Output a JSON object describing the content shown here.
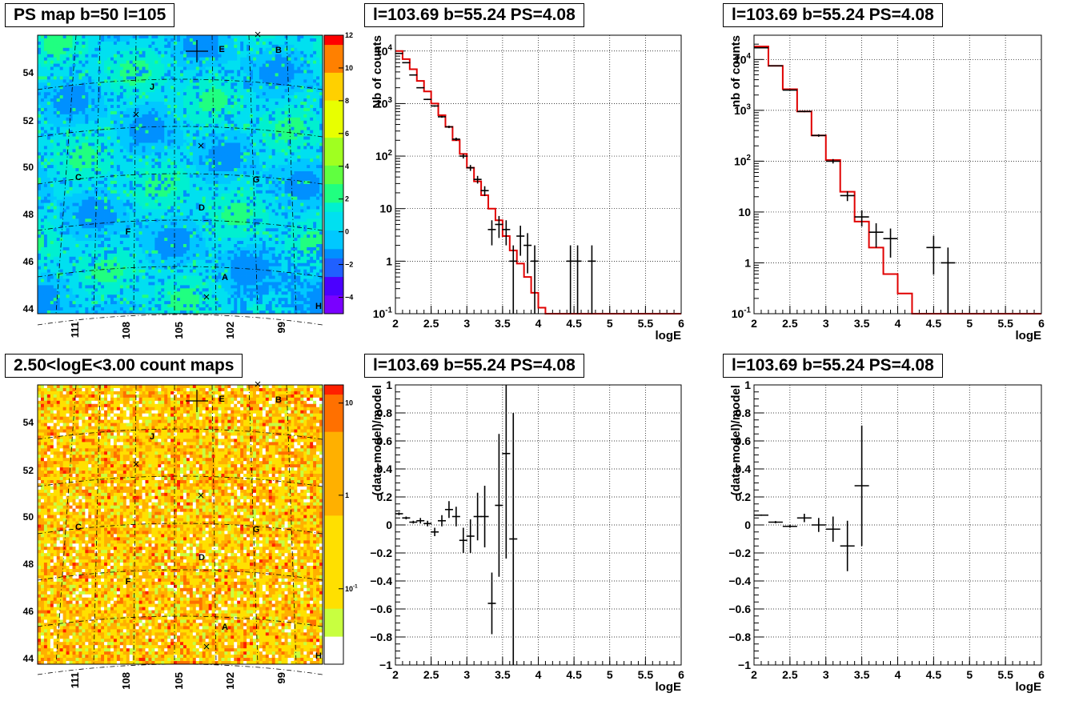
{
  "chart_data": [
    {
      "id": "ps_map",
      "type": "heatmap",
      "title": "PS map b=50 l=105",
      "x_ticks": [
        "111",
        "108",
        "105",
        "102",
        "99"
      ],
      "y_ticks": [
        "44",
        "46",
        "48",
        "50",
        "52",
        "54"
      ],
      "ylim": [
        43.6,
        55.6
      ],
      "colorbar": {
        "scale": "linear",
        "range": [
          -5,
          12
        ],
        "ticks": [
          "-4",
          "-2",
          "0",
          "2",
          "4",
          "6",
          "8",
          "10",
          "12"
        ]
      },
      "labels": [
        "A",
        "B",
        "C",
        "D",
        "E",
        "F",
        "G",
        "H",
        "J"
      ],
      "grid": true
    },
    {
      "id": "counts_1",
      "type": "line",
      "title": "l=103.69 b=55.24 PS=4.08",
      "xlabel": "logE",
      "ylabel": "Nb of counts",
      "xlim": [
        2,
        6
      ],
      "ylim": [
        0.1,
        20000
      ],
      "yscale": "log",
      "x_ticks": [
        "2",
        "2.5",
        "3",
        "3.5",
        "4",
        "4.5",
        "5",
        "5.5",
        "6"
      ],
      "y_ticks": [
        "10^-1",
        "1",
        "10",
        "10^2",
        "10^3",
        "10^4"
      ],
      "grid": true,
      "data_points": [
        {
          "x": 2.05,
          "y": 9000
        },
        {
          "x": 2.15,
          "y": 6000
        },
        {
          "x": 2.25,
          "y": 3500
        },
        {
          "x": 2.35,
          "y": 2000
        },
        {
          "x": 2.45,
          "y": 1200
        },
        {
          "x": 2.55,
          "y": 900
        },
        {
          "x": 2.65,
          "y": 560
        },
        {
          "x": 2.75,
          "y": 360
        },
        {
          "x": 2.85,
          "y": 210
        },
        {
          "x": 2.95,
          "y": 100
        },
        {
          "x": 3.05,
          "y": 60
        },
        {
          "x": 3.15,
          "y": 36
        },
        {
          "x": 3.25,
          "y": 22
        },
        {
          "x": 3.35,
          "y": 4
        },
        {
          "x": 3.45,
          "y": 5
        },
        {
          "x": 3.55,
          "y": 4
        },
        {
          "x": 3.65,
          "y": 1
        },
        {
          "x": 3.75,
          "y": 3
        },
        {
          "x": 3.85,
          "y": 2
        },
        {
          "x": 3.95,
          "y": 1
        },
        {
          "x": 4.45,
          "y": 1
        },
        {
          "x": 4.55,
          "y": 1
        },
        {
          "x": 4.75,
          "y": 1
        }
      ],
      "model": [
        {
          "x0": 2.0,
          "x1": 2.1,
          "y": 10000
        },
        {
          "x0": 2.1,
          "y": 7000,
          "x1": 2.2
        },
        {
          "x0": 2.2,
          "x1": 2.3,
          "y": 4500
        },
        {
          "x0": 2.3,
          "x1": 2.4,
          "y": 2700
        },
        {
          "x0": 2.4,
          "x1": 2.5,
          "y": 1700
        },
        {
          "x0": 2.5,
          "x1": 2.6,
          "y": 1000
        },
        {
          "x0": 2.6,
          "x1": 2.7,
          "y": 600
        },
        {
          "x0": 2.7,
          "x1": 2.8,
          "y": 360
        },
        {
          "x0": 2.8,
          "x1": 2.9,
          "y": 200
        },
        {
          "x0": 2.9,
          "x1": 3.0,
          "y": 110
        },
        {
          "x0": 3.0,
          "x1": 3.1,
          "y": 60
        },
        {
          "x0": 3.1,
          "x1": 3.2,
          "y": 33
        },
        {
          "x0": 3.2,
          "x1": 3.3,
          "y": 18
        },
        {
          "x0": 3.3,
          "x1": 3.4,
          "y": 10
        },
        {
          "x0": 3.4,
          "x1": 3.5,
          "y": 6
        },
        {
          "x0": 3.5,
          "x1": 3.6,
          "y": 3
        },
        {
          "x0": 3.6,
          "x1": 3.7,
          "y": 1.6
        },
        {
          "x0": 3.7,
          "x1": 3.8,
          "y": 0.9
        },
        {
          "x0": 3.8,
          "x1": 3.9,
          "y": 0.5
        },
        {
          "x0": 3.9,
          "x1": 4.0,
          "y": 0.25
        },
        {
          "x0": 4.0,
          "x1": 4.1,
          "y": 0.13
        },
        {
          "x0": 4.1,
          "x1": 6.0,
          "y": 0.1
        }
      ]
    },
    {
      "id": "counts_2",
      "type": "line",
      "title": "l=103.69 b=55.24 PS=4.08",
      "xlabel": "logE",
      "ylabel": "nb of counts",
      "xlim": [
        2,
        6
      ],
      "ylim": [
        0.1,
        30000
      ],
      "yscale": "log",
      "x_ticks": [
        "2",
        "2.5",
        "3",
        "3.5",
        "4",
        "4.5",
        "5",
        "5.5",
        "6"
      ],
      "y_ticks": [
        "10^-1",
        "1",
        "10",
        "10^2",
        "10^3",
        "10^4"
      ],
      "grid": true,
      "data_points": [
        {
          "x": 2.1,
          "y": 17000
        },
        {
          "x": 2.3,
          "y": 7500
        },
        {
          "x": 2.5,
          "y": 2500
        },
        {
          "x": 2.7,
          "y": 950
        },
        {
          "x": 2.9,
          "y": 320
        },
        {
          "x": 3.1,
          "y": 100
        },
        {
          "x": 3.3,
          "y": 21
        },
        {
          "x": 3.5,
          "y": 8
        },
        {
          "x": 3.7,
          "y": 4
        },
        {
          "x": 3.9,
          "y": 3
        },
        {
          "x": 4.5,
          "y": 2
        },
        {
          "x": 4.7,
          "y": 1
        }
      ],
      "model": [
        {
          "x0": 2.0,
          "x1": 2.2,
          "y": 18000
        },
        {
          "x0": 2.2,
          "x1": 2.4,
          "y": 7500
        },
        {
          "x0": 2.4,
          "x1": 2.6,
          "y": 2600
        },
        {
          "x0": 2.6,
          "x1": 2.8,
          "y": 950
        },
        {
          "x0": 2.8,
          "x1": 3.0,
          "y": 320
        },
        {
          "x0": 3.0,
          "x1": 3.2,
          "y": 105
        },
        {
          "x0": 3.2,
          "x1": 3.4,
          "y": 25
        },
        {
          "x0": 3.4,
          "x1": 3.6,
          "y": 6.5
        },
        {
          "x0": 3.6,
          "x1": 3.8,
          "y": 2
        },
        {
          "x0": 3.8,
          "x1": 4.0,
          "y": 0.6
        },
        {
          "x0": 4.0,
          "x1": 4.2,
          "y": 0.25
        },
        {
          "x0": 4.2,
          "x1": 6.0,
          "y": 0.1
        }
      ]
    },
    {
      "id": "count_map",
      "type": "heatmap",
      "title": "2.50<logE<3.00 count maps",
      "x_ticks": [
        "111",
        "108",
        "105",
        "102",
        "99"
      ],
      "y_ticks": [
        "44",
        "46",
        "48",
        "50",
        "52",
        "54"
      ],
      "ylim": [
        43.6,
        55.6
      ],
      "colorbar": {
        "scale": "log",
        "ticks": [
          "10^-1",
          "1",
          "10"
        ]
      },
      "labels": [
        "A",
        "B",
        "C",
        "D",
        "E",
        "F",
        "G",
        "H",
        "J"
      ],
      "grid": true
    },
    {
      "id": "residual_1",
      "type": "scatter",
      "title": "l=103.69 b=55.24 PS=4.08",
      "xlabel": "logE",
      "ylabel": "(data-model)/model",
      "xlim": [
        2,
        6
      ],
      "ylim": [
        -1,
        1
      ],
      "x_ticks": [
        "2",
        "2.5",
        "3",
        "3.5",
        "4",
        "4.5",
        "5",
        "5.5",
        "6"
      ],
      "y_ticks": [
        "-1",
        "-0.8",
        "-0.6",
        "-0.4",
        "-0.2",
        "0",
        "0.2",
        "0.4",
        "0.6",
        "0.8",
        "1"
      ],
      "grid": true,
      "data_points": [
        {
          "x": 2.05,
          "y": 0.08,
          "err": 0.01
        },
        {
          "x": 2.15,
          "y": 0.05,
          "err": 0.01
        },
        {
          "x": 2.25,
          "y": 0.02,
          "err": 0.01
        },
        {
          "x": 2.35,
          "y": 0.03,
          "err": 0.02
        },
        {
          "x": 2.45,
          "y": 0.01,
          "err": 0.02
        },
        {
          "x": 2.55,
          "y": -0.05,
          "err": 0.03
        },
        {
          "x": 2.65,
          "y": 0.03,
          "err": 0.04
        },
        {
          "x": 2.75,
          "y": 0.11,
          "err": 0.06
        },
        {
          "x": 2.85,
          "y": 0.06,
          "err": 0.07
        },
        {
          "x": 2.95,
          "y": -0.11,
          "err": 0.09
        },
        {
          "x": 3.05,
          "y": -0.08,
          "err": 0.12
        },
        {
          "x": 3.15,
          "y": 0.06,
          "err": 0.17
        },
        {
          "x": 3.25,
          "y": 0.06,
          "err": 0.22
        },
        {
          "x": 3.35,
          "y": -0.56,
          "err": 0.22
        },
        {
          "x": 3.45,
          "y": 0.14,
          "err": 0.51
        },
        {
          "x": 3.55,
          "y": 0.51,
          "err": 0.75
        },
        {
          "x": 3.65,
          "y": -0.1,
          "err": 0.9
        }
      ]
    },
    {
      "id": "residual_2",
      "type": "scatter",
      "title": "l=103.69 b=55.24 PS=4.08",
      "xlabel": "logE",
      "ylabel": "(data-model)/model",
      "xlim": [
        2,
        6
      ],
      "ylim": [
        -1,
        1
      ],
      "x_ticks": [
        "2",
        "2.5",
        "3",
        "3.5",
        "4",
        "4.5",
        "5",
        "5.5",
        "6"
      ],
      "y_ticks": [
        "-1",
        "-0.8",
        "-0.6",
        "-0.4",
        "-0.2",
        "0",
        "0.2",
        "0.4",
        "0.6",
        "0.8",
        "1"
      ],
      "grid": true,
      "data_points": [
        {
          "x": 2.1,
          "y": 0.07,
          "err": 0.005
        },
        {
          "x": 2.3,
          "y": 0.02,
          "err": 0.008
        },
        {
          "x": 2.5,
          "y": -0.01,
          "err": 0.01
        },
        {
          "x": 2.7,
          "y": 0.05,
          "err": 0.03
        },
        {
          "x": 2.9,
          "y": 0.0,
          "err": 0.05
        },
        {
          "x": 3.1,
          "y": -0.03,
          "err": 0.09
        },
        {
          "x": 3.3,
          "y": -0.15,
          "err": 0.18
        },
        {
          "x": 3.5,
          "y": 0.28,
          "err": 0.43
        }
      ]
    }
  ]
}
